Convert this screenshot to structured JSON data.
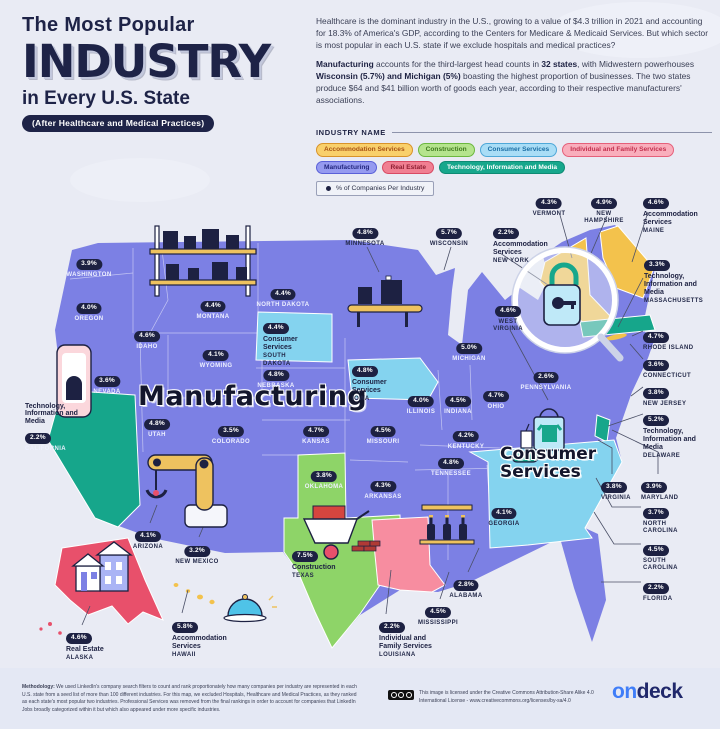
{
  "header": {
    "kicker": "The Most Popular",
    "title": "INDUSTRY",
    "subtitle": "in Every U.S. State",
    "badge": "(After Healthcare and Medical Practices)"
  },
  "intro": {
    "p1": "Healthcare is the dominant industry in the U.S., growing to a value of $4.3 trillion in 2021 and accounting for 18.3% of America's GDP, according to the Centers for Medicare & Medicaid Services. But which sector is most popular in each U.S. state if we exclude hospitals and medical practices?",
    "p2_parts": [
      {
        "t": "Manufacturing",
        "b": true
      },
      {
        "t": " accounts for the third-largest head counts in ",
        "b": false
      },
      {
        "t": "32 states",
        "b": true
      },
      {
        "t": ", with Midwestern powerhouses ",
        "b": false
      },
      {
        "t": "Wisconsin (5.7%) and Michigan (5%)",
        "b": true
      },
      {
        "t": " boasting the highest proportion of businesses. The two states produce $64 and $41 billion worth of goods each year, according to their respective manufacturers' associations.",
        "b": false
      }
    ]
  },
  "legend": {
    "title": "INDUSTRY NAME",
    "note": "% of Companies Per Industry",
    "items": [
      {
        "label": "Accommodation Services",
        "bg": "#f9d06b",
        "border": "#d8932a",
        "text": "#a85314"
      },
      {
        "label": "Construction",
        "bg": "#b5e48d",
        "border": "#6cb83f",
        "text": "#3f7a1e"
      },
      {
        "label": "Consumer Services",
        "bg": "#a9ddf6",
        "border": "#4fa8d8",
        "text": "#1c6ea4"
      },
      {
        "label": "Individual and Family Services",
        "bg": "#f9aebc",
        "border": "#e5607a",
        "text": "#c2304e"
      },
      {
        "label": "Manufacturing",
        "bg": "#959af0",
        "border": "#5a60d8",
        "text": "#23277e"
      },
      {
        "label": "Real Estate",
        "bg": "#f07f92",
        "border": "#d84a64",
        "text": "#8f1f33"
      },
      {
        "label": "Technology, Information and Media",
        "bg": "#17a78c",
        "border": "#0e8a73",
        "text": "#ffffff"
      }
    ]
  },
  "map": {
    "manufacturing_label": "Manufacturing",
    "consumer_label": "Consumer Services",
    "colors": {
      "manufacturing": "#7c80e4",
      "consumer": "#84d3ef",
      "technology": "#16a68b",
      "construction": "#8ed468",
      "individual_family": "#f78da0",
      "accommodation": "#f3c24c",
      "real_estate": "#e8506b",
      "badge": "#1d2142"
    }
  },
  "states": [
    {
      "id": "WA",
      "name": "WASHINGTON",
      "pct": "3.9%"
    },
    {
      "id": "OR",
      "name": "OREGON",
      "pct": "4.0%"
    },
    {
      "id": "CA",
      "name": "CALIFORNIA",
      "pct": "2.2%",
      "industry": "Technology, Information and Media"
    },
    {
      "id": "NV",
      "name": "NEVADA",
      "pct": "3.6%"
    },
    {
      "id": "ID",
      "name": "IDAHO",
      "pct": "4.6%"
    },
    {
      "id": "MT",
      "name": "MONTANA",
      "pct": "4.4%"
    },
    {
      "id": "WY",
      "name": "WYOMING",
      "pct": "4.1%"
    },
    {
      "id": "UT",
      "name": "UTAH",
      "pct": "4.8%"
    },
    {
      "id": "CO",
      "name": "COLORADO",
      "pct": "3.5%"
    },
    {
      "id": "AZ",
      "name": "ARIZONA",
      "pct": "4.1%"
    },
    {
      "id": "NM",
      "name": "NEW MEXICO",
      "pct": "3.2%"
    },
    {
      "id": "ND",
      "name": "NORTH DAKOTA",
      "pct": "4.4%"
    },
    {
      "id": "SD",
      "name": "SOUTH DAKOTA",
      "pct": "4.4%",
      "industry": "Consumer Services"
    },
    {
      "id": "NE",
      "name": "NEBRASKA",
      "pct": "4.8%"
    },
    {
      "id": "KS",
      "name": "KANSAS",
      "pct": "4.7%"
    },
    {
      "id": "OK",
      "name": "OKLAHOMA",
      "pct": "3.8%"
    },
    {
      "id": "TX",
      "name": "TEXAS",
      "pct": "7.5%",
      "industry": "Construction"
    },
    {
      "id": "MN",
      "name": "MINNESOTA",
      "pct": "4.8%"
    },
    {
      "id": "IA",
      "name": "IOWA",
      "pct": "4.8%",
      "industry": "Consumer Services"
    },
    {
      "id": "MO",
      "name": "MISSOURI",
      "pct": "4.5%"
    },
    {
      "id": "AR",
      "name": "ARKANSAS",
      "pct": "4.3%"
    },
    {
      "id": "LA",
      "name": "LOUISIANA",
      "pct": "2.2%",
      "industry": "Individual and Family Services"
    },
    {
      "id": "WI",
      "name": "WISCONSIN",
      "pct": "5.7%"
    },
    {
      "id": "IL",
      "name": "ILLINOIS",
      "pct": "4.0%"
    },
    {
      "id": "MI",
      "name": "MICHIGAN",
      "pct": "5.0%"
    },
    {
      "id": "IN",
      "name": "INDIANA",
      "pct": "4.5%"
    },
    {
      "id": "OH",
      "name": "OHIO",
      "pct": "4.7%"
    },
    {
      "id": "KY",
      "name": "KENTUCKY",
      "pct": "4.2%"
    },
    {
      "id": "TN",
      "name": "TENNESSEE",
      "pct": "4.8%"
    },
    {
      "id": "MS",
      "name": "MISSISSIPPI",
      "pct": "4.5%"
    },
    {
      "id": "AL",
      "name": "ALABAMA",
      "pct": "2.8%"
    },
    {
      "id": "GA",
      "name": "GEORGIA",
      "pct": "4.1%"
    },
    {
      "id": "FL",
      "name": "FLORIDA",
      "pct": "2.2%"
    },
    {
      "id": "SC",
      "name": "SOUTH CAROLINA",
      "pct": "4.5%"
    },
    {
      "id": "NC",
      "name": "NORTH CAROLINA",
      "pct": "3.7%"
    },
    {
      "id": "VA",
      "name": "VIRGINIA",
      "pct": "3.8%"
    },
    {
      "id": "WV",
      "name": "WEST VIRGINIA",
      "pct": "4.6%"
    },
    {
      "id": "MD",
      "name": "MARYLAND",
      "pct": "3.9%"
    },
    {
      "id": "DE",
      "name": "DELAWARE",
      "pct": "5.2%",
      "industry": "Technology, Information and Media"
    },
    {
      "id": "NJ",
      "name": "NEW JERSEY",
      "pct": "3.8%"
    },
    {
      "id": "PA",
      "name": "PENNSYLVANIA",
      "pct": "2.6%"
    },
    {
      "id": "NY",
      "name": "NEW YORK",
      "pct": "2.2%",
      "industry": "Accommodation Services"
    },
    {
      "id": "CT",
      "name": "CONNECTICUT",
      "pct": "3.6%"
    },
    {
      "id": "RI",
      "name": "RHODE ISLAND",
      "pct": "4.7%"
    },
    {
      "id": "MA",
      "name": "MASSACHUSETTS",
      "pct": "3.3%",
      "industry": "Technology, Information and Media"
    },
    {
      "id": "VT",
      "name": "VERMONT",
      "pct": "4.3%"
    },
    {
      "id": "NH",
      "name": "NEW HAMPSHIRE",
      "pct": "4.9%"
    },
    {
      "id": "ME",
      "name": "MAINE",
      "pct": "4.6%",
      "industry": "Accommodation Services"
    },
    {
      "id": "AK",
      "name": "ALASKA",
      "pct": "4.6%",
      "industry": "Real Estate"
    },
    {
      "id": "HI",
      "name": "HAWAII",
      "pct": "5.8%",
      "industry": "Accommodation Services"
    }
  ],
  "footer": {
    "methodology_label": "Methodology:",
    "methodology_text": " We used LinkedIn's company search filters to count and rank proportionately how many companies per industry are represented in each U.S. state from a seed list of more than 100 different industries. For this map, we excluded Hospitals, Healthcare and Medical Practices, as they ranked as each state's most popular two industries. Professional Services was removed from the final rankings in order to account for companies that LinkedIn Jobs broadly categorized within it but which also appeared under more specific industries.",
    "license_text": "This image is licensed under the Creative Commons Attribution-Share Alike 4.0 International License - www.creativecommons.org/licenses/by-sa/4.0",
    "logo_on": "on",
    "logo_deck": "deck"
  }
}
